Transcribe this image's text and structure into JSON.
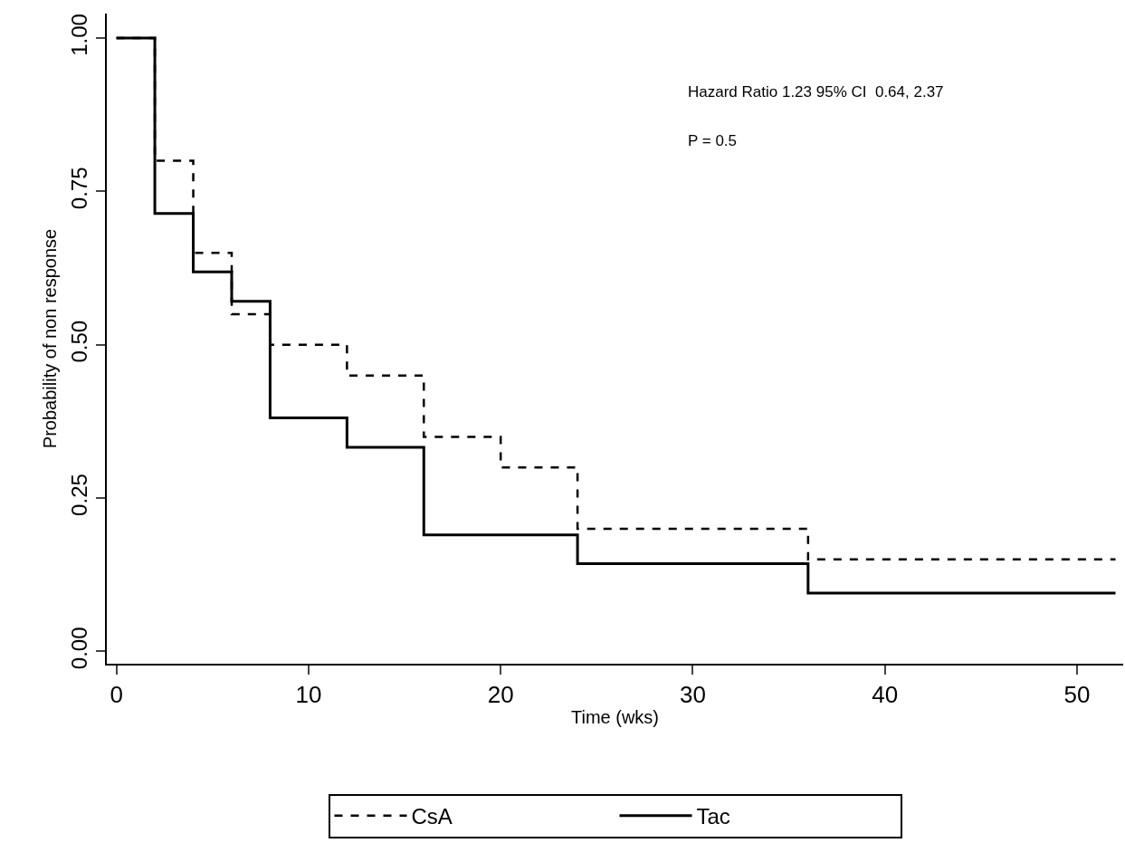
{
  "chart_data": {
    "type": "step",
    "xlabel": "Time (wks)",
    "ylabel": "Probability of non response",
    "series": [
      {
        "name": "CsA",
        "color": "#000000",
        "line_style": "dashed",
        "x": [
          0,
          2,
          4,
          6,
          8,
          12,
          16,
          20,
          24,
          36,
          52
        ],
        "values": [
          1.0,
          0.8,
          0.65,
          0.55,
          0.5,
          0.45,
          0.35,
          0.3,
          0.2,
          0.15,
          0.15
        ]
      },
      {
        "name": "Tac",
        "color": "#000000",
        "line_style": "solid",
        "x": [
          0,
          2,
          4,
          6,
          8,
          12,
          16,
          24,
          36,
          52
        ],
        "values": [
          1.0,
          0.714,
          0.619,
          0.571,
          0.381,
          0.333,
          0.19,
          0.143,
          0.095,
          0.095
        ]
      }
    ],
    "xlim": [
      -0.5,
      52.4
    ],
    "ylim": [
      -0.02,
      1.04
    ],
    "xticks": [
      0,
      10,
      20,
      30,
      40,
      50
    ],
    "yticks": [
      {
        "value": 0,
        "label": "0.00"
      },
      {
        "value": 0.25,
        "label": "0.25"
      },
      {
        "value": 0.5,
        "label": "0.50"
      },
      {
        "value": 0.75,
        "label": "0.75"
      },
      {
        "value": 1,
        "label": "1.00"
      }
    ],
    "legend": "bottom",
    "marker": "none",
    "annotations": [
      "Hazard Ratio 1.23 95% CI  0.64, 2.37",
      "P = 0.5"
    ]
  }
}
